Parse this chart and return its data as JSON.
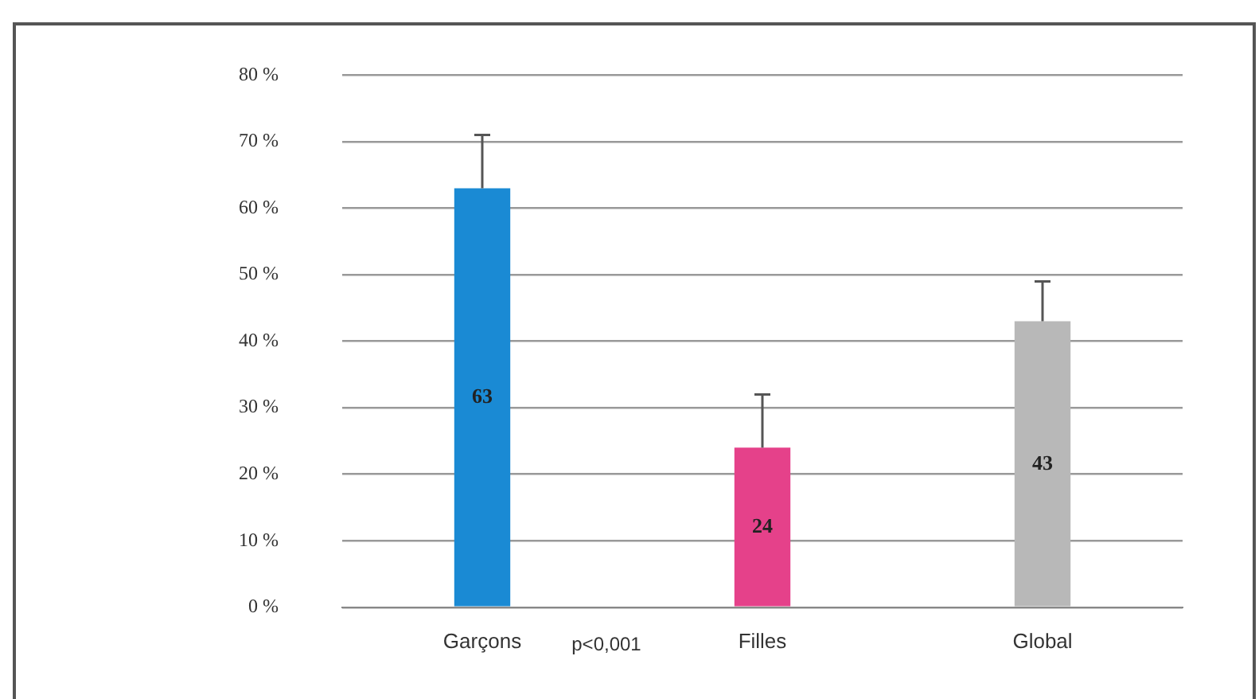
{
  "chart_data": {
    "type": "bar",
    "categories": [
      "Garçons",
      "Filles",
      "Global"
    ],
    "values": [
      63,
      24,
      43
    ],
    "colors": [
      "#1a8ad4",
      "#e5418a",
      "#b8b8b8"
    ],
    "errors": [
      [
        63,
        71
      ],
      [
        24,
        32
      ],
      [
        43,
        49
      ]
    ],
    "ylim": [
      0,
      80
    ],
    "yticks": [
      {
        "value": 0,
        "label": "0 %"
      },
      {
        "value": 10,
        "label": "10 %"
      },
      {
        "value": 20,
        "label": "20 %"
      },
      {
        "value": 30,
        "label": "30 %"
      },
      {
        "value": 40,
        "label": "40 %"
      },
      {
        "value": 50,
        "label": "50 %"
      },
      {
        "value": 60,
        "label": "60 %"
      },
      {
        "value": 70,
        "label": "70 %"
      },
      {
        "value": 80,
        "label": "80 %"
      }
    ],
    "grid": "y",
    "legend": false,
    "data_labels": true,
    "annotations": [
      "p<0,001"
    ]
  }
}
